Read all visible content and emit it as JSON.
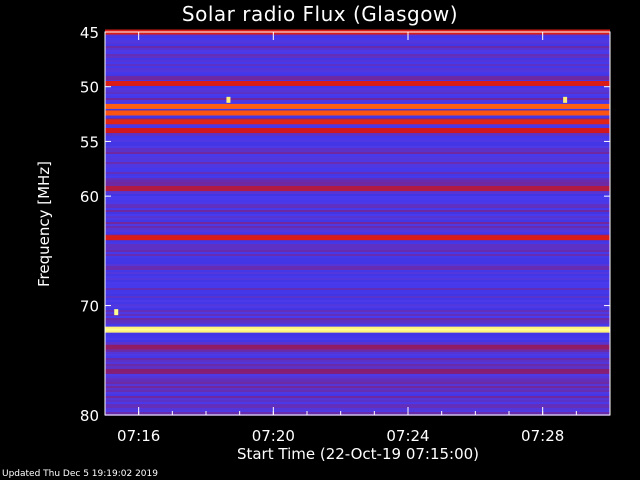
{
  "title": "Solar radio Flux (Glasgow)",
  "footer": "Updated Thu Dec  5 19:19:02 2019",
  "chart_data": {
    "type": "heatmap",
    "title": "Solar radio Flux (Glasgow)",
    "xlabel": "Start Time (22-Oct-19 07:15:00)",
    "ylabel": "Frequency [MHz]",
    "xlim": [
      "07:15:00",
      "07:30:00"
    ],
    "ylim": [
      45,
      80
    ],
    "y_inverted": true,
    "yticks": [
      45,
      50,
      55,
      60,
      70,
      80
    ],
    "xticks": [
      "07:16",
      "07:20",
      "07:24",
      "07:28"
    ],
    "colorscale": [
      "#10106a",
      "#2a2ad8",
      "#4040ff",
      "#8a1c6a",
      "#d81818",
      "#ff5a10",
      "#ffd040",
      "#ffff90"
    ],
    "background_level": 0.32,
    "emission_bands": [
      {
        "mhz": 45.0,
        "level": 0.58
      },
      {
        "mhz": 49.7,
        "level": 0.58
      },
      {
        "mhz": 51.8,
        "level": 0.72
      },
      {
        "mhz": 52.4,
        "level": 0.7
      },
      {
        "mhz": 53.2,
        "level": 0.6
      },
      {
        "mhz": 54.0,
        "level": 0.56
      },
      {
        "mhz": 59.3,
        "level": 0.5
      },
      {
        "mhz": 63.8,
        "level": 0.58
      },
      {
        "mhz": 72.2,
        "level": 0.96
      },
      {
        "mhz": 73.8,
        "level": 0.44
      },
      {
        "mhz": 76.0,
        "level": 0.42
      }
    ],
    "bursts": [
      {
        "time": "07:18:40",
        "mhz": 51.2,
        "level": 0.95
      },
      {
        "time": "07:28:40",
        "mhz": 51.2,
        "level": 0.95
      },
      {
        "time": "07:15:20",
        "mhz": 70.6,
        "level": 1.0
      }
    ]
  }
}
